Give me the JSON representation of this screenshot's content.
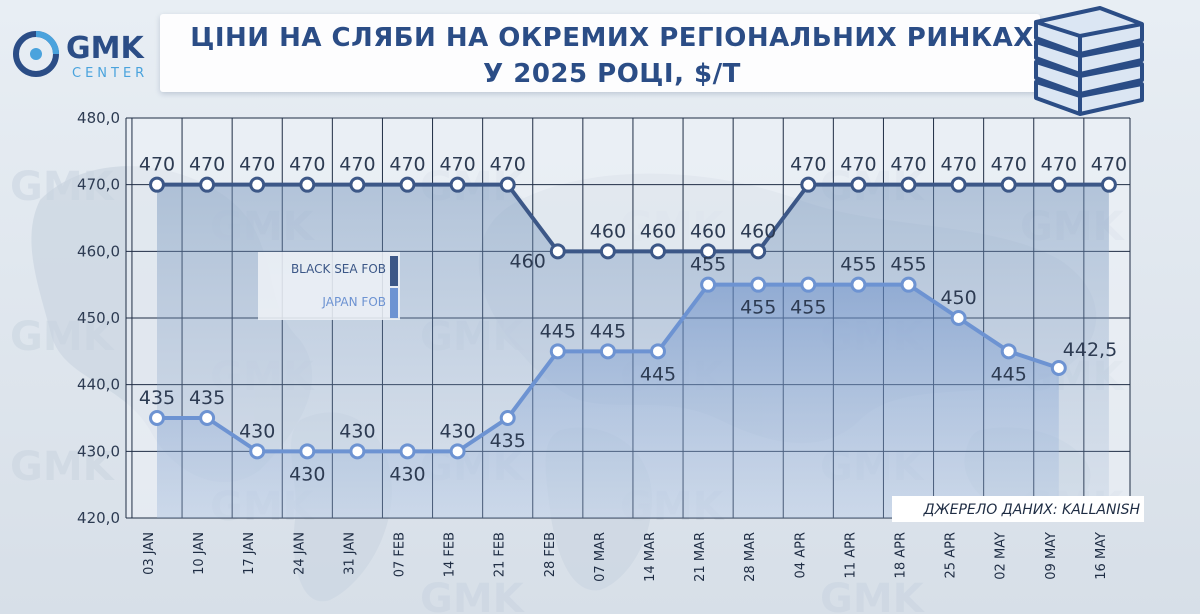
{
  "header": {
    "title_line1": "ЦІНИ НА СЛЯБИ НА ОКРЕМИХ РЕГІОНАЛЬНИХ РИНКАХ",
    "title_line2": "У 2025 РОЦІ, $/Т",
    "logo_main": "GMK",
    "logo_sub": "CENTER"
  },
  "source_note": "ДЖЕРЕЛО ДАНИХ: KALLANISH",
  "colors": {
    "black_sea": "#3c5787",
    "japan": "#6d93d2",
    "accent": "#2b4d86",
    "logo_accent": "#4aa3dd"
  },
  "chart_data": {
    "type": "line",
    "title": "ЦІНИ НА СЛЯБИ НА ОКРЕМИХ РЕГІОНАЛЬНИХ РИНКАХ У 2025 РОЦІ, $/Т",
    "categories": [
      "03 JAN",
      "10 JAN",
      "17 JAN",
      "24 JAN",
      "31 JAN",
      "07 FEB",
      "14 FEB",
      "21 FEB",
      "28 FEB",
      "07 MAR",
      "14 MAR",
      "21 MAR",
      "28 MAR",
      "04 APR",
      "11 APR",
      "18 APR",
      "25 APR",
      "02 MAY",
      "09 MAY",
      "16 MAY"
    ],
    "yticks": [
      "420,0",
      "430,0",
      "440,0",
      "450,0",
      "460,0",
      "470,0",
      "480,0"
    ],
    "ylim": [
      420,
      480
    ],
    "grid": true,
    "legend_position": "left, inside plot",
    "series": [
      {
        "name": "BLACK SEA FOB",
        "values": [
          470,
          470,
          470,
          470,
          470,
          470,
          470,
          470,
          460,
          460,
          460,
          460,
          460,
          470,
          470,
          470,
          470,
          470,
          470,
          470
        ],
        "labels": [
          "470",
          "470",
          "470",
          "470",
          "470",
          "470",
          "470",
          "470",
          "460",
          "460",
          "460",
          "460",
          "460",
          "470",
          "470",
          "470",
          "470",
          "470",
          "470",
          "470"
        ]
      },
      {
        "name": "JAPAN FOB",
        "values": [
          435,
          435,
          430,
          430,
          430,
          430,
          430,
          435,
          445,
          445,
          445,
          455,
          455,
          455,
          455,
          455,
          450,
          445,
          442.5,
          null
        ],
        "labels": [
          "435",
          "435",
          "430",
          "430",
          "430",
          "430",
          "430",
          "435",
          "445",
          "445",
          "445",
          "455",
          "455",
          "455",
          "455",
          "455",
          "450",
          "445",
          "442,5",
          ""
        ]
      }
    ]
  }
}
